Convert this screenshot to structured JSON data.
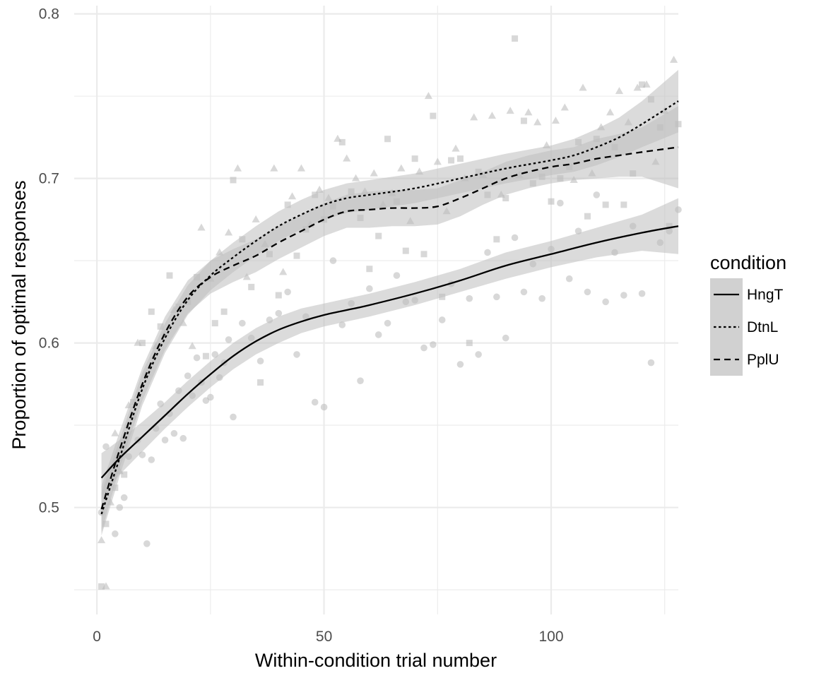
{
  "chart_data": {
    "type": "scatter",
    "title": "",
    "xlabel": "Within-condition trial number",
    "ylabel": "Proportion of optimal responses",
    "xlim": [
      -5,
      128
    ],
    "ylim": [
      0.435,
      0.805
    ],
    "x_ticks": [
      0,
      50,
      100
    ],
    "y_ticks": [
      0.5,
      0.6,
      0.7,
      0.8
    ],
    "grid": true,
    "legend": {
      "title": "condition",
      "position": "right"
    },
    "colors": {
      "line": "#000000",
      "ribbon": "#bdbdbd",
      "points": "#b8b8b8",
      "grid": "#ebebeb"
    },
    "series": [
      {
        "name": "HngT",
        "linetype": "solid",
        "marker": "circle",
        "smooth": {
          "x": [
            1,
            5,
            10,
            15,
            20,
            25,
            30,
            35,
            40,
            45,
            50,
            55,
            60,
            70,
            80,
            90,
            100,
            110,
            120,
            128
          ],
          "y": [
            0.518,
            0.53,
            0.543,
            0.556,
            0.569,
            0.581,
            0.592,
            0.601,
            0.608,
            0.613,
            0.617,
            0.62,
            0.623,
            0.63,
            0.638,
            0.647,
            0.654,
            0.661,
            0.667,
            0.671
          ],
          "lower": [
            0.505,
            0.52,
            0.534,
            0.548,
            0.561,
            0.573,
            0.584,
            0.593,
            0.6,
            0.606,
            0.61,
            0.613,
            0.616,
            0.623,
            0.631,
            0.639,
            0.646,
            0.652,
            0.656,
            0.654
          ],
          "upper": [
            0.533,
            0.541,
            0.552,
            0.564,
            0.577,
            0.589,
            0.6,
            0.609,
            0.616,
            0.621,
            0.624,
            0.627,
            0.63,
            0.637,
            0.645,
            0.655,
            0.662,
            0.67,
            0.678,
            0.688
          ]
        },
        "points": {
          "x": [
            1,
            2,
            3,
            4,
            5,
            6,
            7,
            8,
            9,
            10,
            11,
            12,
            13,
            14,
            15,
            16,
            17,
            18,
            19,
            20,
            21,
            22,
            23,
            24,
            25,
            26,
            27,
            28,
            29,
            30,
            32,
            34,
            36,
            38,
            40,
            42,
            44,
            46,
            48,
            50,
            52,
            54,
            56,
            58,
            60,
            62,
            64,
            66,
            68,
            70,
            72,
            74,
            76,
            78,
            80,
            82,
            84,
            86,
            88,
            90,
            92,
            94,
            96,
            98,
            100,
            102,
            104,
            106,
            108,
            110,
            112,
            114,
            116,
            118,
            120,
            122,
            124,
            126,
            128
          ],
          "y": [
            0.497,
            0.537,
            0.523,
            0.484,
            0.5,
            0.506,
            0.531,
            0.555,
            0.541,
            0.532,
            0.478,
            0.529,
            0.548,
            0.563,
            0.541,
            0.557,
            0.545,
            0.571,
            0.542,
            0.58,
            0.568,
            0.591,
            0.576,
            0.565,
            0.567,
            0.593,
            0.579,
            0.588,
            0.602,
            0.555,
            0.612,
            0.603,
            0.589,
            0.614,
            0.618,
            0.631,
            0.593,
            0.616,
            0.564,
            0.561,
            0.65,
            0.611,
            0.624,
            0.577,
            0.633,
            0.605,
            0.612,
            0.641,
            0.625,
            0.626,
            0.597,
            0.599,
            0.614,
            0.636,
            0.587,
            0.627,
            0.593,
            0.655,
            0.628,
            0.603,
            0.664,
            0.631,
            0.648,
            0.627,
            0.657,
            0.685,
            0.639,
            0.668,
            0.631,
            0.69,
            0.625,
            0.655,
            0.629,
            0.671,
            0.63,
            0.588,
            0.661,
            0.668,
            0.681
          ]
        }
      },
      {
        "name": "DtnL",
        "linetype": "dotted",
        "marker": "triangle",
        "smooth": {
          "x": [
            1,
            5,
            10,
            15,
            20,
            25,
            30,
            35,
            40,
            45,
            50,
            55,
            60,
            70,
            80,
            90,
            100,
            105,
            110,
            115,
            120,
            128
          ],
          "y": [
            0.496,
            0.53,
            0.572,
            0.603,
            0.626,
            0.641,
            0.652,
            0.662,
            0.671,
            0.678,
            0.684,
            0.688,
            0.69,
            0.694,
            0.7,
            0.706,
            0.711,
            0.714,
            0.719,
            0.725,
            0.733,
            0.747
          ],
          "lower": [
            0.483,
            0.519,
            0.562,
            0.594,
            0.617,
            0.632,
            0.643,
            0.653,
            0.662,
            0.669,
            0.675,
            0.679,
            0.681,
            0.685,
            0.691,
            0.697,
            0.702,
            0.704,
            0.708,
            0.713,
            0.719,
            0.728
          ],
          "upper": [
            0.509,
            0.541,
            0.582,
            0.612,
            0.635,
            0.65,
            0.661,
            0.671,
            0.68,
            0.687,
            0.693,
            0.697,
            0.699,
            0.703,
            0.709,
            0.715,
            0.72,
            0.724,
            0.73,
            0.737,
            0.747,
            0.766
          ]
        },
        "points": {
          "x": [
            1,
            2,
            3,
            4,
            5,
            7,
            9,
            11,
            13,
            15,
            17,
            19,
            21,
            23,
            25,
            27,
            29,
            31,
            33,
            35,
            37,
            39,
            41,
            43,
            45,
            47,
            49,
            51,
            53,
            55,
            57,
            59,
            61,
            63,
            65,
            67,
            69,
            71,
            73,
            75,
            77,
            79,
            81,
            83,
            85,
            87,
            89,
            91,
            93,
            95,
            97,
            99,
            101,
            103,
            105,
            107,
            109,
            111,
            113,
            115,
            117,
            119,
            121,
            123,
            125,
            127
          ],
          "y": [
            0.48,
            0.452,
            0.503,
            0.545,
            0.522,
            0.562,
            0.6,
            0.582,
            0.598,
            0.606,
            0.62,
            0.612,
            0.598,
            0.67,
            0.639,
            0.655,
            0.667,
            0.706,
            0.64,
            0.675,
            0.66,
            0.706,
            0.643,
            0.689,
            0.706,
            0.672,
            0.693,
            0.688,
            0.724,
            0.712,
            0.7,
            0.692,
            0.703,
            0.684,
            0.691,
            0.706,
            0.674,
            0.704,
            0.75,
            0.71,
            0.68,
            0.718,
            0.7,
            0.737,
            0.702,
            0.738,
            0.69,
            0.741,
            0.702,
            0.74,
            0.734,
            0.72,
            0.735,
            0.743,
            0.699,
            0.755,
            0.703,
            0.731,
            0.74,
            0.753,
            0.734,
            0.755,
            0.757,
            0.71,
            0.741,
            0.772
          ]
        }
      },
      {
        "name": "PplU",
        "linetype": "dashed",
        "marker": "square",
        "smooth": {
          "x": [
            1,
            5,
            10,
            15,
            20,
            25,
            30,
            35,
            40,
            45,
            50,
            55,
            60,
            65,
            70,
            75,
            80,
            85,
            90,
            95,
            100,
            105,
            110,
            115,
            120,
            128
          ],
          "y": [
            0.499,
            0.535,
            0.575,
            0.606,
            0.628,
            0.64,
            0.647,
            0.653,
            0.661,
            0.668,
            0.675,
            0.68,
            0.681,
            0.682,
            0.682,
            0.683,
            0.688,
            0.694,
            0.7,
            0.704,
            0.707,
            0.709,
            0.712,
            0.714,
            0.716,
            0.719
          ],
          "lower": [
            0.485,
            0.524,
            0.565,
            0.596,
            0.618,
            0.63,
            0.637,
            0.643,
            0.651,
            0.658,
            0.665,
            0.67,
            0.67,
            0.671,
            0.671,
            0.672,
            0.677,
            0.684,
            0.69,
            0.694,
            0.697,
            0.699,
            0.7,
            0.701,
            0.701,
            0.694
          ],
          "upper": [
            0.513,
            0.546,
            0.585,
            0.616,
            0.638,
            0.65,
            0.657,
            0.663,
            0.671,
            0.678,
            0.685,
            0.69,
            0.692,
            0.693,
            0.693,
            0.694,
            0.699,
            0.704,
            0.71,
            0.714,
            0.717,
            0.719,
            0.724,
            0.727,
            0.731,
            0.744
          ]
        },
        "points": {
          "x": [
            1,
            2,
            4,
            6,
            8,
            10,
            12,
            14,
            16,
            18,
            20,
            22,
            24,
            26,
            28,
            30,
            32,
            34,
            36,
            38,
            40,
            42,
            44,
            46,
            48,
            50,
            52,
            54,
            56,
            58,
            60,
            62,
            64,
            66,
            68,
            70,
            72,
            74,
            76,
            78,
            80,
            82,
            84,
            86,
            88,
            90,
            92,
            94,
            96,
            98,
            100,
            102,
            104,
            106,
            108,
            110,
            112,
            114,
            116,
            118,
            120,
            122,
            124,
            126,
            128
          ],
          "y": [
            0.452,
            0.49,
            0.512,
            0.52,
            0.564,
            0.6,
            0.619,
            0.61,
            0.641,
            0.622,
            0.625,
            0.64,
            0.592,
            0.612,
            0.619,
            0.699,
            0.663,
            0.634,
            0.576,
            0.654,
            0.629,
            0.684,
            0.653,
            0.669,
            0.69,
            0.675,
            0.683,
            0.722,
            0.692,
            0.676,
            0.645,
            0.665,
            0.724,
            0.686,
            0.656,
            0.712,
            0.654,
            0.738,
            0.628,
            0.711,
            0.712,
            0.6,
            0.704,
            0.69,
            0.663,
            0.688,
            0.785,
            0.735,
            0.697,
            0.701,
            0.686,
            0.7,
            0.707,
            0.722,
            0.677,
            0.724,
            0.684,
            0.719,
            0.684,
            0.703,
            0.757,
            0.748,
            0.731,
            0.671,
            0.733
          ]
        }
      }
    ]
  }
}
